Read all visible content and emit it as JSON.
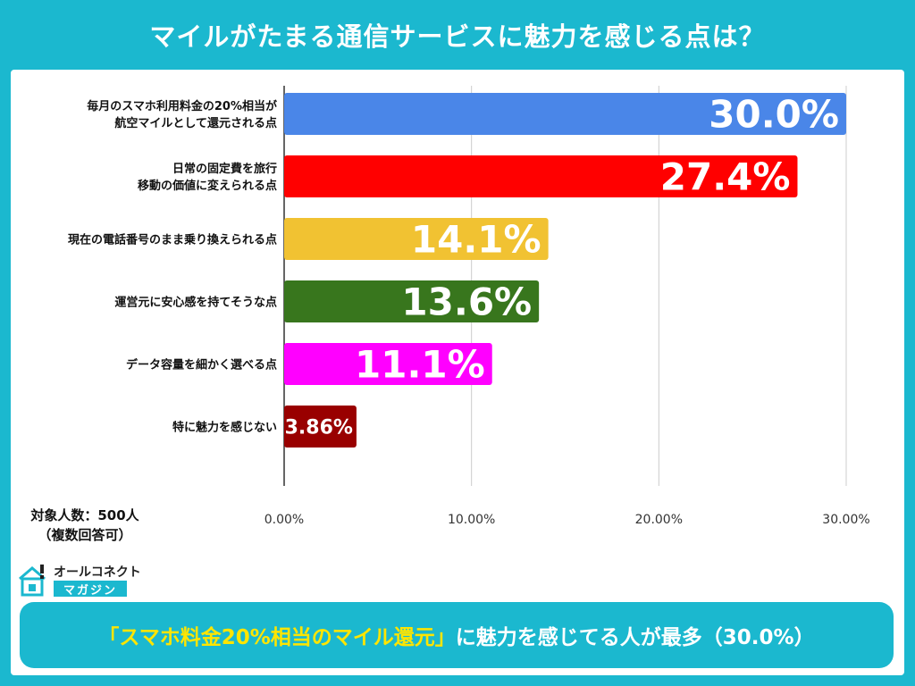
{
  "title": "マイルがたまる通信サービスに魅力を感じる点は？",
  "sample": {
    "line1": "対象人数：500人",
    "line2": "（複数回答可）"
  },
  "logo": {
    "top": "オールコネクト",
    "bottom": "マガジン"
  },
  "conclusion": {
    "highlight": "「スマホ料金20%相当のマイル還元」",
    "rest": "に魅力を感じてる人が最多（30.0%）"
  },
  "chart_data": {
    "type": "bar",
    "orientation": "horizontal",
    "categories": [
      [
        "毎月のスマホ利用料金の20%相当が",
        "航空マイルとして還元される点"
      ],
      [
        "日常の固定費を旅行",
        "移動の価値に変えられる点"
      ],
      [
        "現在の電話番号のまま乗り換えられる点"
      ],
      [
        "運営元に安心感を持てそうな点"
      ],
      [
        "データ容量を細かく選べる点"
      ],
      [
        "特に魅力を感じない"
      ]
    ],
    "values": [
      30.0,
      27.4,
      14.1,
      13.6,
      11.1,
      3.86
    ],
    "value_labels": [
      "30.0%",
      "27.4%",
      "14.1%",
      "13.6%",
      "11.1%",
      "3.86%"
    ],
    "colors": [
      "#4a86e8",
      "#ff0000",
      "#f1c232",
      "#38761d",
      "#ff00ff",
      "#990000"
    ],
    "xlim": [
      0,
      30
    ],
    "xticks": [
      0,
      10,
      20,
      30
    ],
    "xtick_labels": [
      "0.00%",
      "10.00%",
      "20.00%",
      "30.00%"
    ],
    "grid": true
  }
}
